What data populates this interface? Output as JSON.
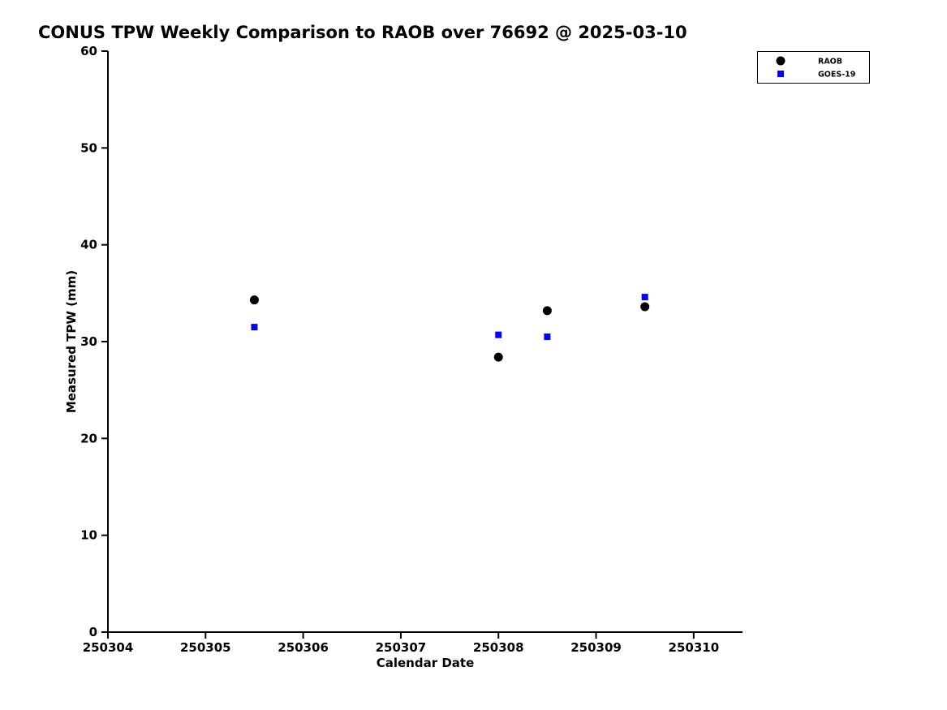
{
  "chart_data": {
    "type": "scatter",
    "title": "CONUS TPW Weekly Comparison to RAOB over 76692 @ 2025-03-10",
    "xlabel": "Calendar Date",
    "ylabel": "Measured TPW (mm)",
    "xlim": [
      250304,
      250310.5
    ],
    "ylim": [
      0,
      60
    ],
    "xticks": [
      "250304",
      "250305",
      "250306",
      "250307",
      "250308",
      "250309",
      "250310"
    ],
    "yticks": [
      "0",
      "10",
      "20",
      "30",
      "40",
      "50",
      "60"
    ],
    "grid": false,
    "legend_position": "top-right",
    "axis_color": "#000000",
    "series": [
      {
        "name": "RAOB",
        "marker": "circle",
        "color": "#000000",
        "points": [
          {
            "x": 250305.5,
            "y": 34.3
          },
          {
            "x": 250308.0,
            "y": 28.4
          },
          {
            "x": 250308.5,
            "y": 33.2
          },
          {
            "x": 250309.5,
            "y": 33.6
          }
        ]
      },
      {
        "name": "GOES-19",
        "marker": "square",
        "color": "#0000ff",
        "points": [
          {
            "x": 250305.5,
            "y": 31.5
          },
          {
            "x": 250308.0,
            "y": 30.7
          },
          {
            "x": 250308.5,
            "y": 30.5
          },
          {
            "x": 250309.5,
            "y": 34.6
          }
        ]
      }
    ]
  }
}
